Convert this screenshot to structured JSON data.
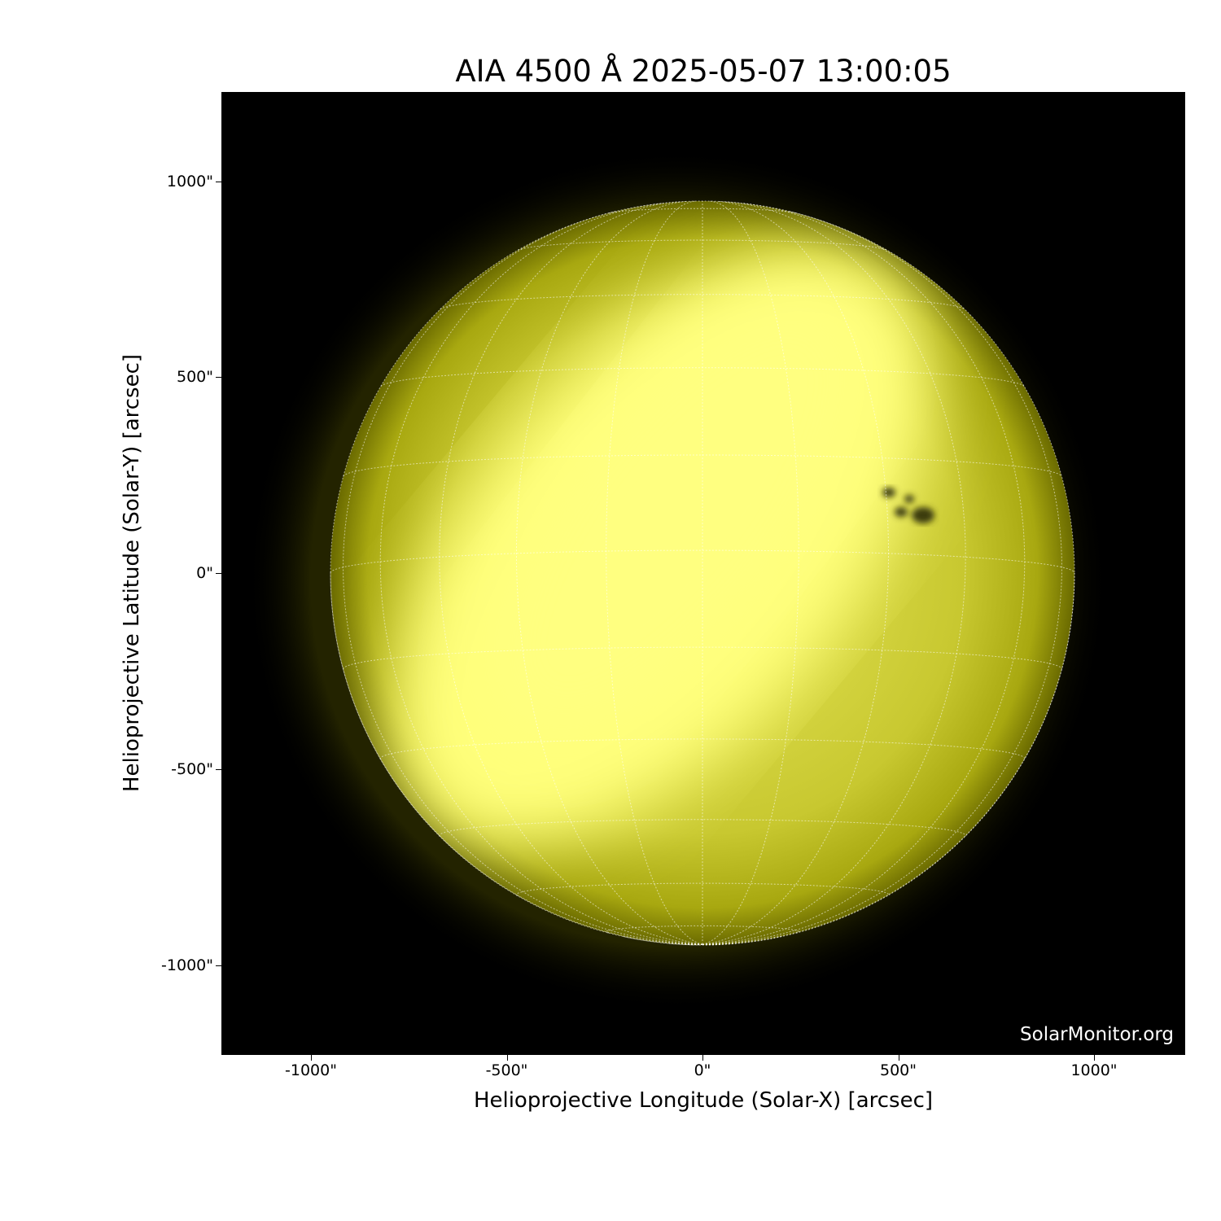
{
  "title": "AIA 4500 Å 2025-05-07 13:00:05",
  "xlabel": "Helioprojective Longitude (Solar-X) [arcsec]",
  "ylabel": "Helioprojective Latitude (Solar-Y) [arcsec]",
  "x_ticks": [
    {
      "v": -1000,
      "label": "-1000\""
    },
    {
      "v": -500,
      "label": "-500\""
    },
    {
      "v": 0,
      "label": "0\""
    },
    {
      "v": 500,
      "label": "500\""
    },
    {
      "v": 1000,
      "label": "1000\""
    }
  ],
  "y_ticks": [
    {
      "v": 1000,
      "label": "1000\""
    },
    {
      "v": 500,
      "label": "500\""
    },
    {
      "v": 0,
      "label": "0\""
    },
    {
      "v": -500,
      "label": "-500\""
    },
    {
      "v": -1000,
      "label": "-1000\""
    }
  ],
  "axis_range_arcsec": {
    "x": [
      -1230,
      1230
    ],
    "y": [
      -1230,
      1230
    ]
  },
  "solar_radius_arcsec": 950,
  "grid_spacing_deg": 15,
  "watermark": "SolarMonitor.org",
  "colors": {
    "sun_bright": "#ffff80",
    "sun_limb": "#8a8a00",
    "background": "#000000",
    "grid": "#ffffff"
  }
}
